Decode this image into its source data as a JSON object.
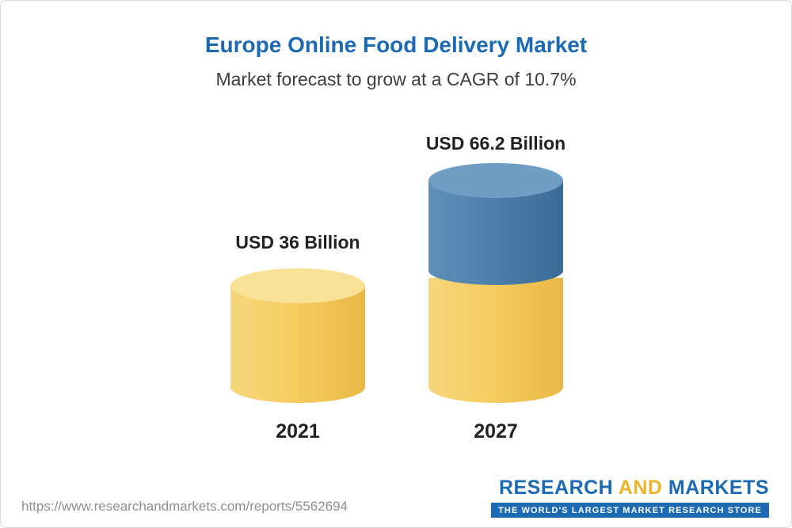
{
  "header": {
    "title": "Europe Online Food Delivery Market",
    "subtitle": "Market forecast to grow at a CAGR of 10.7%"
  },
  "chart_data": {
    "type": "bar",
    "title": "Europe Online Food Delivery Market",
    "subtitle": "Market forecast to grow at a CAGR of 10.7%",
    "categories": [
      "2021",
      "2027"
    ],
    "values": [
      36,
      66.2
    ],
    "unit": "USD Billion",
    "data_labels": [
      "USD 36 Billion",
      "USD 66.2 Billion"
    ],
    "cagr_percent": 10.7,
    "bar_style": "3d-cylinder",
    "colors": {
      "bar_2021": "#f5cd61",
      "bar_2027_bottom_segment": "#f5cd61",
      "bar_2027_top_segment": "#4d80ab",
      "title": "#1c6ab3"
    },
    "legend": "none",
    "grid": false
  },
  "bars": [
    {
      "year": "2021",
      "value_label": "USD 36 Billion"
    },
    {
      "year": "2027",
      "value_label": "USD 66.2 Billion"
    }
  ],
  "footer": {
    "url": "https://www.researchandmarkets.com/reports/5562694",
    "logo": {
      "word1": "RESEARCH",
      "word2": "AND",
      "word3": "MARKETS",
      "tagline": "THE WORLD'S LARGEST MARKET RESEARCH STORE"
    }
  }
}
